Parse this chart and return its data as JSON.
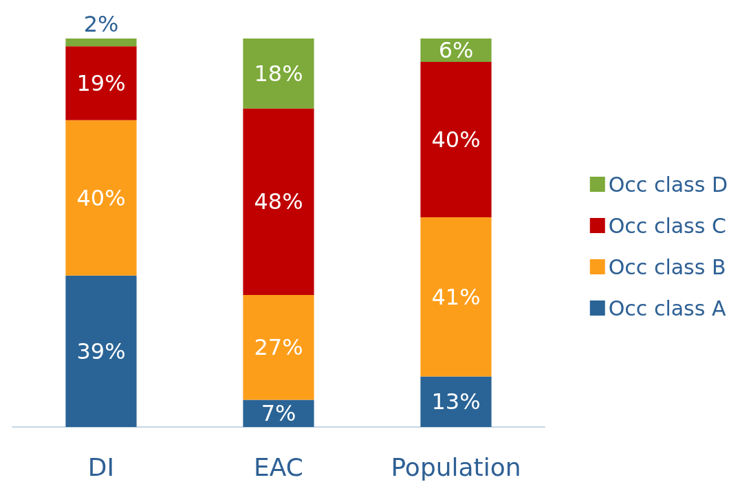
{
  "chart_data": {
    "type": "bar",
    "stacked": true,
    "legend": "right",
    "categories": [
      "DI",
      "EAC",
      "Population"
    ],
    "series": [
      {
        "name": "Occ class A",
        "color": "#2a6496",
        "values": [
          39,
          7,
          13
        ],
        "value_labels": [
          "39%",
          "7%",
          "13%"
        ]
      },
      {
        "name": "Occ class B",
        "color": "#fd9e1b",
        "values": [
          40,
          27,
          41
        ],
        "value_labels": [
          "40%",
          "27%",
          "41%"
        ]
      },
      {
        "name": "Occ class C",
        "color": "#c00000",
        "values": [
          19,
          48,
          40
        ],
        "value_labels": [
          "19%",
          "48%",
          "40%"
        ]
      },
      {
        "name": "Occ class D",
        "color": "#7daa3a",
        "values": [
          2,
          18,
          6
        ],
        "value_labels": [
          "2%",
          "18%",
          "6%"
        ]
      }
    ]
  }
}
